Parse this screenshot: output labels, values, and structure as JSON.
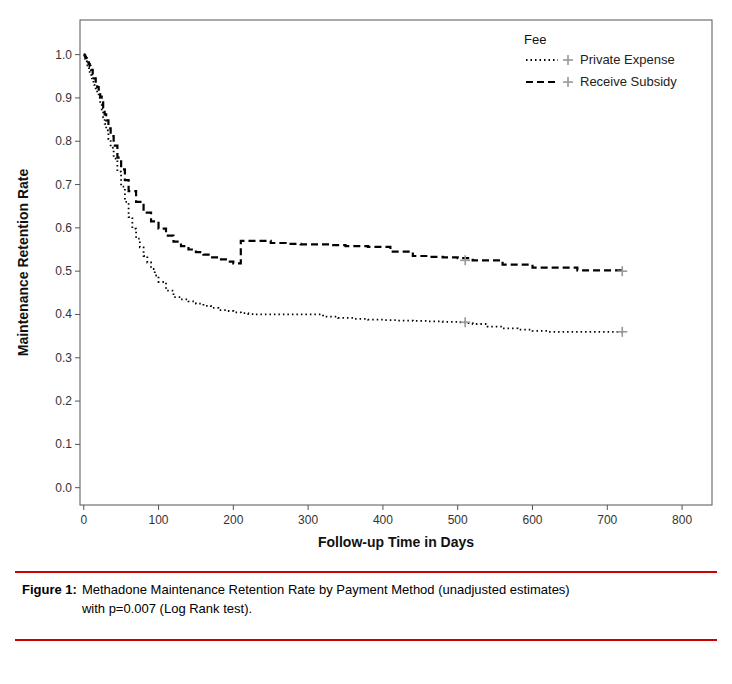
{
  "chart_data": {
    "type": "step",
    "xlabel": "Follow-up Time in Days",
    "ylabel": "Maintenance Retention Rate",
    "xlim": [
      -5,
      840
    ],
    "ylim": [
      -0.04,
      1.08
    ],
    "xticks": [
      0,
      100,
      200,
      300,
      400,
      500,
      600,
      700,
      800
    ],
    "yticks": [
      {
        "value": 0,
        "label": "0.0"
      },
      0.1,
      0.2,
      0.3,
      0.4,
      0.5,
      0.6,
      0.7,
      0.8,
      0.9,
      {
        "value": 1,
        "label": "1.0"
      }
    ],
    "grid": false,
    "legend": "upper right",
    "legend_title": "Fee",
    "caption_label": "Figure 1:",
    "caption": "Methadone Maintenance Retention Rate by Payment Method (unadjusted estimates)\nwith p=0.007 (Log Rank test).",
    "series": [
      {
        "name": "Private Expense",
        "color": "#000000",
        "line_style": "dotted",
        "marker": "plus",
        "x": [
          0,
          1,
          2,
          3,
          4,
          5,
          6,
          7,
          8,
          9,
          10,
          11,
          12,
          13,
          14,
          16,
          18,
          20,
          22,
          24,
          26,
          28,
          30,
          33,
          36,
          40,
          45,
          50,
          55,
          60,
          65,
          70,
          75,
          80,
          85,
          90,
          95,
          100,
          110,
          120,
          130,
          140,
          150,
          160,
          170,
          180,
          190,
          200,
          210,
          220,
          230,
          240,
          250,
          260,
          270,
          280,
          290,
          300,
          320,
          340,
          360,
          380,
          400,
          420,
          440,
          460,
          480,
          500,
          510,
          520,
          540,
          560,
          580,
          600,
          620,
          640,
          660,
          680,
          700,
          720
        ],
        "values": [
          1.0,
          0.995,
          0.99,
          0.985,
          0.98,
          0.975,
          0.97,
          0.965,
          0.96,
          0.955,
          0.95,
          0.945,
          0.94,
          0.935,
          0.93,
          0.92,
          0.91,
          0.9,
          0.885,
          0.87,
          0.855,
          0.84,
          0.825,
          0.805,
          0.785,
          0.76,
          0.73,
          0.695,
          0.66,
          0.625,
          0.598,
          0.575,
          0.555,
          0.535,
          0.52,
          0.505,
          0.49,
          0.475,
          0.455,
          0.44,
          0.435,
          0.43,
          0.425,
          0.42,
          0.415,
          0.41,
          0.408,
          0.405,
          0.403,
          0.401,
          0.4,
          0.4,
          0.4,
          0.4,
          0.4,
          0.4,
          0.4,
          0.4,
          0.395,
          0.392,
          0.39,
          0.388,
          0.387,
          0.386,
          0.385,
          0.384,
          0.383,
          0.382,
          0.38,
          0.378,
          0.372,
          0.368,
          0.365,
          0.362,
          0.36,
          0.36,
          0.36,
          0.36,
          0.36,
          0.36
        ],
        "censored_x": [
          510,
          720
        ],
        "censored_y": [
          0.382,
          0.36
        ]
      },
      {
        "name": "Receive Subsidy",
        "color": "#000000",
        "line_style": "dashed",
        "marker": "plus",
        "x": [
          0,
          1,
          2,
          3,
          4,
          5,
          6,
          7,
          8,
          9,
          10,
          12,
          14,
          16,
          18,
          20,
          22,
          24,
          26,
          28,
          30,
          33,
          36,
          40,
          45,
          50,
          55,
          60,
          70,
          80,
          90,
          100,
          110,
          120,
          130,
          140,
          150,
          160,
          170,
          180,
          190,
          200,
          210,
          230,
          250,
          270,
          290,
          310,
          330,
          350,
          380,
          410,
          440,
          460,
          480,
          500,
          520,
          560,
          600,
          660,
          720
        ],
        "values": [
          1.0,
          0.998,
          0.995,
          0.992,
          0.989,
          0.986,
          0.982,
          0.978,
          0.974,
          0.97,
          0.965,
          0.955,
          0.945,
          0.935,
          0.925,
          0.915,
          0.903,
          0.89,
          0.877,
          0.862,
          0.848,
          0.83,
          0.812,
          0.79,
          0.762,
          0.735,
          0.71,
          0.685,
          0.66,
          0.635,
          0.615,
          0.598,
          0.582,
          0.568,
          0.558,
          0.55,
          0.544,
          0.538,
          0.532,
          0.527,
          0.522,
          0.518,
          0.57,
          0.57,
          0.565,
          0.563,
          0.562,
          0.562,
          0.56,
          0.558,
          0.556,
          0.545,
          0.535,
          0.533,
          0.532,
          0.53,
          0.525,
          0.515,
          0.508,
          0.502,
          0.5
        ],
        "censored_x": [
          510,
          720
        ],
        "censored_y": [
          0.525,
          0.5
        ]
      }
    ]
  }
}
